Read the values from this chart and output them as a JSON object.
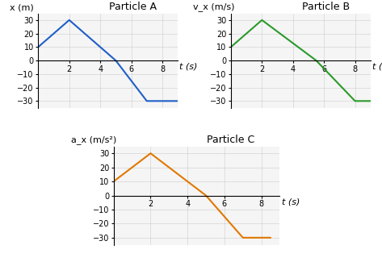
{
  "particle_A": {
    "title": "Particle A",
    "ylabel": "x (m)",
    "color": "#1f5fc8",
    "x": [
      0,
      2,
      5,
      7,
      9
    ],
    "y": [
      10,
      30,
      0,
      -30,
      -30
    ],
    "xlim": [
      0,
      9
    ],
    "ylim": [
      -35,
      35
    ]
  },
  "particle_B": {
    "title": "Particle B",
    "ylabel": "v_x (m/s)",
    "color": "#2a9a2a",
    "x": [
      0,
      2,
      5.5,
      8,
      9
    ],
    "y": [
      10,
      30,
      0,
      -30,
      -30
    ],
    "xlim": [
      0,
      9
    ],
    "ylim": [
      -35,
      35
    ]
  },
  "particle_C": {
    "title": "Particle C",
    "ylabel": "a_x (m/s²)",
    "color": "#e07800",
    "x": [
      0,
      2,
      5,
      7,
      8.5
    ],
    "y": [
      10,
      30,
      0,
      -30,
      -30
    ],
    "xlim": [
      0,
      9
    ],
    "ylim": [
      -35,
      35
    ]
  },
  "xlabel": "t (s)",
  "xticks": [
    2,
    4,
    6,
    8
  ],
  "yticks": [
    -30,
    -20,
    -10,
    0,
    10,
    20,
    30
  ],
  "bg_color": "#f5f5f5",
  "grid_color": "#cccccc"
}
